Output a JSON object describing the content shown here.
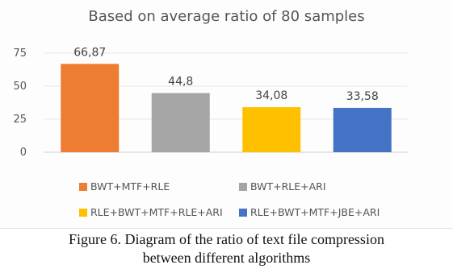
{
  "chart_data": {
    "type": "bar",
    "title": "Based on average ratio of 80 samples",
    "categories": [
      "BWT+MTF+RLE",
      "BWT+RLE+ARI",
      "RLE+BWT+MTF+RLE+ARI",
      "RLE+BWT+MTF+JBE+ARI"
    ],
    "values": [
      66.87,
      44.8,
      34.08,
      33.58
    ],
    "value_labels": [
      "66,87",
      "44,8",
      "34,08",
      "33,58"
    ],
    "colors": [
      "#ED7D31",
      "#A5A5A5",
      "#FFC000",
      "#4472C4"
    ],
    "yticks": [
      "0",
      "25",
      "50",
      "75"
    ],
    "ytick_values": [
      0,
      25,
      50,
      75
    ],
    "ylim": [
      0,
      75
    ],
    "grid": true,
    "legend_position": "bottom",
    "xlabel": "",
    "ylabel": ""
  },
  "caption": {
    "line1": "Figure 6. Diagram of the ratio of text file compression",
    "line2": "between different algorithms"
  }
}
